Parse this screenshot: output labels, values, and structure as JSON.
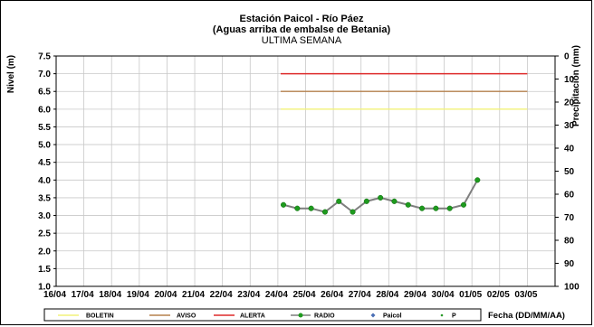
{
  "chart_data": {
    "type": "line",
    "title": "Estación Paicol - Río Páez",
    "subtitle": "(Aguas arriba de embalse de Betania)",
    "period": "ULTIMA SEMANA",
    "ylabel": "Nivel (m)",
    "y2label": "Precipitación (mm)",
    "xlabel": "Fecha (DD/MM/AA)",
    "ylim": [
      1.0,
      7.5
    ],
    "yticks": [
      "1.0",
      "1.5",
      "2.0",
      "2.5",
      "3.0",
      "3.5",
      "4.0",
      "4.5",
      "5.0",
      "5.5",
      "6.0",
      "6.5",
      "7.0",
      "7.5"
    ],
    "y2lim": [
      0,
      100
    ],
    "y2reversed": true,
    "y2ticks": [
      "0",
      "10",
      "20",
      "30",
      "40",
      "50",
      "60",
      "70",
      "80",
      "90",
      "100"
    ],
    "xticks": [
      "16/04",
      "17/04",
      "18/04",
      "19/04",
      "20/04",
      "21/04",
      "22/04",
      "23/04",
      "24/04",
      "25/04",
      "26/04",
      "27/04",
      "28/04",
      "29/04",
      "30/04",
      "01/05",
      "02/05",
      "03/05"
    ],
    "grid": true,
    "legend_placement": "bottom",
    "thresholds": [
      {
        "name": "BOLETIN",
        "value": 6.0,
        "x_start": 24.1,
        "x_end": 33.0,
        "color": "#f2f27a"
      },
      {
        "name": "AVISO",
        "value": 6.5,
        "x_start": 24.1,
        "x_end": 33.0,
        "color": "#b5804d"
      },
      {
        "name": "ALERTA",
        "value": 7.0,
        "x_start": 24.1,
        "x_end": 33.0,
        "color": "#dd2a2a"
      }
    ],
    "series": [
      {
        "name": "RADIO",
        "color": "#7f7f7f",
        "marker_color": "#1e9a1e",
        "x": [
          24.2,
          24.7,
          25.2,
          25.7,
          26.2,
          26.7,
          27.2,
          27.7,
          28.2,
          28.7,
          29.2,
          29.7,
          30.2,
          30.7,
          31.2
        ],
        "y": [
          3.3,
          3.2,
          3.2,
          3.1,
          3.4,
          3.1,
          3.4,
          3.5,
          3.4,
          3.3,
          3.2,
          3.2,
          3.2,
          3.3,
          4.0
        ]
      },
      {
        "name": "Paicol",
        "marker_color": "#4a6fb5",
        "x": [],
        "y": []
      },
      {
        "name": "P",
        "marker_color": "#2a9a2a",
        "x": [],
        "y": []
      }
    ]
  },
  "legend": {
    "boletin": "BOLETIN",
    "aviso": "AVISO",
    "alerta": "ALERTA",
    "radio": "RADIO",
    "paicol": "Paicol",
    "p": "P"
  },
  "colors": {
    "boletin": "#f2f27a",
    "aviso": "#b5804d",
    "alerta": "#dd2a2a",
    "radio_line": "#7f7f7f",
    "radio_marker": "#1e9a1e",
    "paicol": "#4a6fb5",
    "p": "#2a9a2a",
    "grid": "#c8c8c8"
  }
}
